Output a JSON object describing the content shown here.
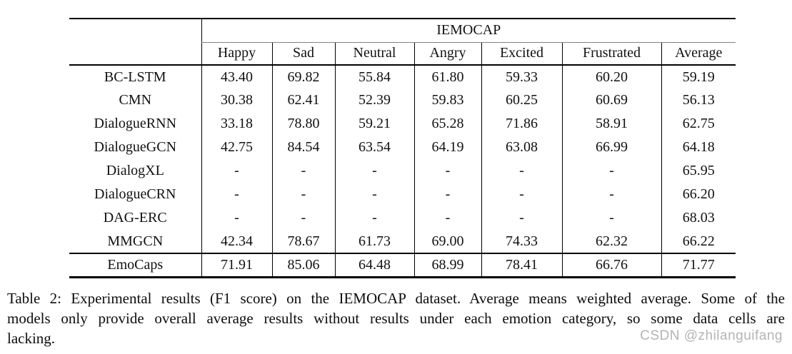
{
  "table": {
    "group_header": "IEMOCAP",
    "columns": [
      "Happy",
      "Sad",
      "Neutral",
      "Angry",
      "Excited",
      "Frustrated",
      "Average"
    ],
    "rows": [
      {
        "model": "BC-LSTM",
        "values": [
          "43.40",
          "69.82",
          "55.84",
          "61.80",
          "59.33",
          "60.20",
          "59.19"
        ],
        "bold": [
          false,
          false,
          false,
          false,
          false,
          false,
          false
        ],
        "is_footer": false
      },
      {
        "model": "CMN",
        "values": [
          "30.38",
          "62.41",
          "52.39",
          "59.83",
          "60.25",
          "60.69",
          "56.13"
        ],
        "bold": [
          false,
          false,
          false,
          false,
          false,
          false,
          false
        ],
        "is_footer": false
      },
      {
        "model": "DialogueRNN",
        "values": [
          "33.18",
          "78.80",
          "59.21",
          "65.28",
          "71.86",
          "58.91",
          "62.75"
        ],
        "bold": [
          false,
          false,
          false,
          false,
          false,
          false,
          false
        ],
        "is_footer": false
      },
      {
        "model": "DialogueGCN",
        "values": [
          "42.75",
          "84.54",
          "63.54",
          "64.19",
          "63.08",
          "66.99",
          "64.18"
        ],
        "bold": [
          false,
          false,
          false,
          false,
          false,
          true,
          false
        ],
        "is_footer": false
      },
      {
        "model": "DialogXL",
        "values": [
          "-",
          "-",
          "-",
          "-",
          "-",
          "-",
          "65.95"
        ],
        "bold": [
          false,
          false,
          false,
          false,
          false,
          false,
          false
        ],
        "is_footer": false
      },
      {
        "model": "DialogueCRN",
        "values": [
          "-",
          "-",
          "-",
          "-",
          "-",
          "-",
          "66.20"
        ],
        "bold": [
          false,
          false,
          false,
          false,
          false,
          false,
          false
        ],
        "is_footer": false
      },
      {
        "model": "DAG-ERC",
        "values": [
          "-",
          "-",
          "-",
          "-",
          "-",
          "-",
          "68.03"
        ],
        "bold": [
          false,
          false,
          false,
          false,
          false,
          false,
          false
        ],
        "is_footer": false
      },
      {
        "model": "MMGCN",
        "values": [
          "42.34",
          "78.67",
          "61.73",
          "69.00",
          "74.33",
          "62.32",
          "66.22"
        ],
        "bold": [
          false,
          false,
          false,
          true,
          false,
          false,
          false
        ],
        "is_footer": false
      },
      {
        "model": "EmoCaps",
        "values": [
          "71.91",
          "85.06",
          "64.48",
          "68.99",
          "78.41",
          "66.76",
          "71.77"
        ],
        "bold": [
          true,
          true,
          true,
          false,
          true,
          false,
          true
        ],
        "is_footer": true
      }
    ]
  },
  "chart_data": {
    "type": "table",
    "title": "Experimental results (F1 score) on the IEMOCAP dataset",
    "categories": [
      "Happy",
      "Sad",
      "Neutral",
      "Angry",
      "Excited",
      "Frustrated",
      "Average"
    ],
    "series": [
      {
        "name": "BC-LSTM",
        "values": [
          43.4,
          69.82,
          55.84,
          61.8,
          59.33,
          60.2,
          59.19
        ]
      },
      {
        "name": "CMN",
        "values": [
          30.38,
          62.41,
          52.39,
          59.83,
          60.25,
          60.69,
          56.13
        ]
      },
      {
        "name": "DialogueRNN",
        "values": [
          33.18,
          78.8,
          59.21,
          65.28,
          71.86,
          58.91,
          62.75
        ]
      },
      {
        "name": "DialogueGCN",
        "values": [
          42.75,
          84.54,
          63.54,
          64.19,
          63.08,
          66.99,
          64.18
        ]
      },
      {
        "name": "DialogXL",
        "values": [
          null,
          null,
          null,
          null,
          null,
          null,
          65.95
        ]
      },
      {
        "name": "DialogueCRN",
        "values": [
          null,
          null,
          null,
          null,
          null,
          null,
          66.2
        ]
      },
      {
        "name": "DAG-ERC",
        "values": [
          null,
          null,
          null,
          null,
          null,
          null,
          68.03
        ]
      },
      {
        "name": "MMGCN",
        "values": [
          42.34,
          78.67,
          61.73,
          69.0,
          74.33,
          62.32,
          66.22
        ]
      },
      {
        "name": "EmoCaps",
        "values": [
          71.91,
          85.06,
          64.48,
          68.99,
          78.41,
          66.76,
          71.77
        ]
      }
    ]
  },
  "caption": {
    "lines": [
      "Table 2: Experimental results (F1 score) on the IEMOCAP dataset. Average means weighted average. Some of the",
      "models only provide overall average results without results under each emotion category, so some data cells are",
      "lacking."
    ]
  },
  "watermark": "CSDN @zhilanguifang"
}
